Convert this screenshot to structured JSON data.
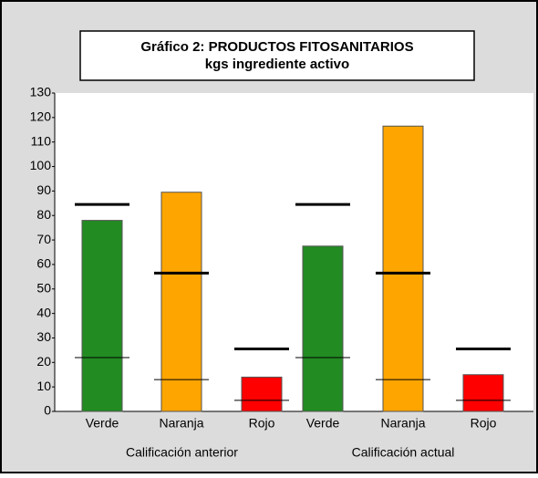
{
  "chart_data": {
    "type": "bar",
    "title": "Gráfico 2: PRODUCTOS FITOSANITARIOS",
    "subtitle": "kgs ingrediente activo",
    "categories": [
      "Verde",
      "Naranja",
      "Rojo",
      "Verde",
      "Naranja",
      "Rojo"
    ],
    "groups": [
      "Calificación anterior",
      "Calificación actual"
    ],
    "values": [
      78,
      89.5,
      14,
      67.5,
      116.5,
      15
    ],
    "colors": [
      "#228b22",
      "#ffa500",
      "#ff0000",
      "#228b22",
      "#ffa500",
      "#ff0000"
    ],
    "markers": [
      {
        "values": [
          84.5,
          56.5,
          25.5,
          84.5,
          56.5,
          25.5
        ],
        "width": 3
      },
      {
        "values": [
          22,
          13,
          4.5,
          22,
          13,
          4.5
        ],
        "width": 1
      }
    ],
    "ylim": [
      0,
      130
    ],
    "yticks": [
      0,
      10,
      20,
      30,
      40,
      50,
      60,
      70,
      80,
      90,
      100,
      110,
      120,
      130
    ],
    "grid": false
  }
}
